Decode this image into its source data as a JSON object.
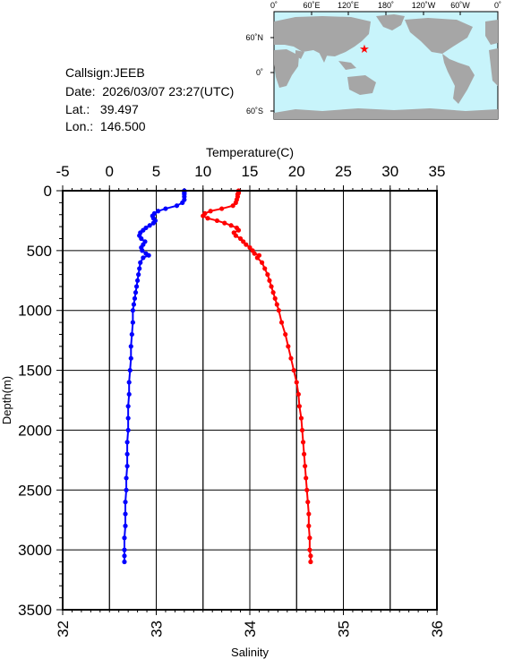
{
  "meta": {
    "callsign_line": "Callsign:JEEB",
    "date_line": "Date:  2026/03/07 23:27(UTC)",
    "lat_line": "Lat.:   39.497",
    "lon_line": "Lon.:  146.500"
  },
  "map": {
    "top_ticks": [
      "0˚",
      "60˚E",
      "120˚E",
      "180˚",
      "120˚W",
      "60˚W",
      "0˚"
    ],
    "lat_ticks": [
      "60˚N",
      "0˚",
      "60˚S"
    ],
    "ocean_color": "#c8f4fb",
    "land_color": "#a6a6a6",
    "marker_color": "#ff0000",
    "marker_symbol": "★"
  },
  "chart_data": {
    "type": "scatter",
    "title": "",
    "ylabel": "Depth(m)",
    "ylim": [
      0,
      3500
    ],
    "yticks": [
      0,
      500,
      1000,
      1500,
      2000,
      2500,
      3000,
      3500
    ],
    "y_inverted": true,
    "grid": true,
    "temperature_axis": {
      "label": "Temperature(C)",
      "position": "top",
      "range": [
        -5,
        35
      ],
      "ticks": [
        "-5",
        "0",
        "5",
        "10",
        "15",
        "20",
        "25",
        "30",
        "35"
      ]
    },
    "salinity_axis": {
      "label": "Salinity",
      "position": "bottom",
      "range": [
        32,
        36
      ],
      "ticks": [
        "32",
        "33",
        "34",
        "35",
        "36"
      ]
    },
    "series": [
      {
        "axis": "temperature",
        "color": "#0000ff",
        "points": [
          [
            8.0,
            0
          ],
          [
            8.0,
            10
          ],
          [
            8.0,
            20
          ],
          [
            8.0,
            30
          ],
          [
            8.0,
            50
          ],
          [
            8.0,
            75
          ],
          [
            7.8,
            100
          ],
          [
            7.2,
            125
          ],
          [
            6.0,
            150
          ],
          [
            5.2,
            170
          ],
          [
            4.8,
            190
          ],
          [
            4.6,
            210
          ],
          [
            4.7,
            230
          ],
          [
            4.9,
            250
          ],
          [
            4.7,
            270
          ],
          [
            4.3,
            290
          ],
          [
            3.9,
            310
          ],
          [
            3.6,
            330
          ],
          [
            3.3,
            350
          ],
          [
            3.2,
            375
          ],
          [
            3.4,
            400
          ],
          [
            3.8,
            425
          ],
          [
            3.6,
            450
          ],
          [
            3.4,
            475
          ],
          [
            3.5,
            500
          ],
          [
            3.9,
            525
          ],
          [
            4.2,
            540
          ],
          [
            3.6,
            560
          ],
          [
            3.3,
            600
          ],
          [
            3.2,
            650
          ],
          [
            3.1,
            700
          ],
          [
            3.0,
            750
          ],
          [
            2.9,
            800
          ],
          [
            2.8,
            850
          ],
          [
            2.7,
            900
          ],
          [
            2.6,
            950
          ],
          [
            2.5,
            1000
          ],
          [
            2.5,
            1100
          ],
          [
            2.4,
            1200
          ],
          [
            2.3,
            1300
          ],
          [
            2.3,
            1400
          ],
          [
            2.2,
            1500
          ],
          [
            2.1,
            1600
          ],
          [
            2.1,
            1700
          ],
          [
            2.0,
            1800
          ],
          [
            2.0,
            1900
          ],
          [
            2.0,
            2000
          ],
          [
            1.9,
            2100
          ],
          [
            1.9,
            2200
          ],
          [
            1.9,
            2300
          ],
          [
            1.8,
            2400
          ],
          [
            1.8,
            2500
          ],
          [
            1.7,
            2600
          ],
          [
            1.7,
            2700
          ],
          [
            1.7,
            2800
          ],
          [
            1.6,
            2900
          ],
          [
            1.6,
            3000
          ],
          [
            1.6,
            3050
          ],
          [
            1.6,
            3100
          ]
        ]
      },
      {
        "axis": "salinity",
        "color": "#ff0000",
        "points": [
          [
            33.88,
            0
          ],
          [
            33.88,
            10
          ],
          [
            33.88,
            20
          ],
          [
            33.87,
            30
          ],
          [
            33.87,
            50
          ],
          [
            33.86,
            75
          ],
          [
            33.85,
            100
          ],
          [
            33.82,
            125
          ],
          [
            33.7,
            150
          ],
          [
            33.58,
            170
          ],
          [
            33.52,
            190
          ],
          [
            33.5,
            210
          ],
          [
            33.55,
            230
          ],
          [
            33.65,
            250
          ],
          [
            33.73,
            270
          ],
          [
            33.8,
            290
          ],
          [
            33.86,
            310
          ],
          [
            33.88,
            330
          ],
          [
            33.83,
            350
          ],
          [
            33.85,
            375
          ],
          [
            33.9,
            400
          ],
          [
            33.93,
            425
          ],
          [
            33.96,
            450
          ],
          [
            34.0,
            475
          ],
          [
            34.03,
            500
          ],
          [
            34.05,
            525
          ],
          [
            34.1,
            540
          ],
          [
            34.08,
            560
          ],
          [
            34.13,
            600
          ],
          [
            34.16,
            650
          ],
          [
            34.19,
            700
          ],
          [
            34.21,
            750
          ],
          [
            34.23,
            800
          ],
          [
            34.25,
            850
          ],
          [
            34.27,
            900
          ],
          [
            34.29,
            950
          ],
          [
            34.31,
            1000
          ],
          [
            34.34,
            1100
          ],
          [
            34.38,
            1200
          ],
          [
            34.41,
            1300
          ],
          [
            34.44,
            1400
          ],
          [
            34.47,
            1500
          ],
          [
            34.5,
            1600
          ],
          [
            34.52,
            1700
          ],
          [
            34.53,
            1800
          ],
          [
            34.55,
            1900
          ],
          [
            34.56,
            2000
          ],
          [
            34.57,
            2100
          ],
          [
            34.58,
            2200
          ],
          [
            34.59,
            2300
          ],
          [
            34.6,
            2400
          ],
          [
            34.61,
            2500
          ],
          [
            34.62,
            2600
          ],
          [
            34.63,
            2700
          ],
          [
            34.63,
            2800
          ],
          [
            34.64,
            2900
          ],
          [
            34.64,
            3000
          ],
          [
            34.65,
            3050
          ],
          [
            34.65,
            3100
          ]
        ]
      }
    ]
  }
}
